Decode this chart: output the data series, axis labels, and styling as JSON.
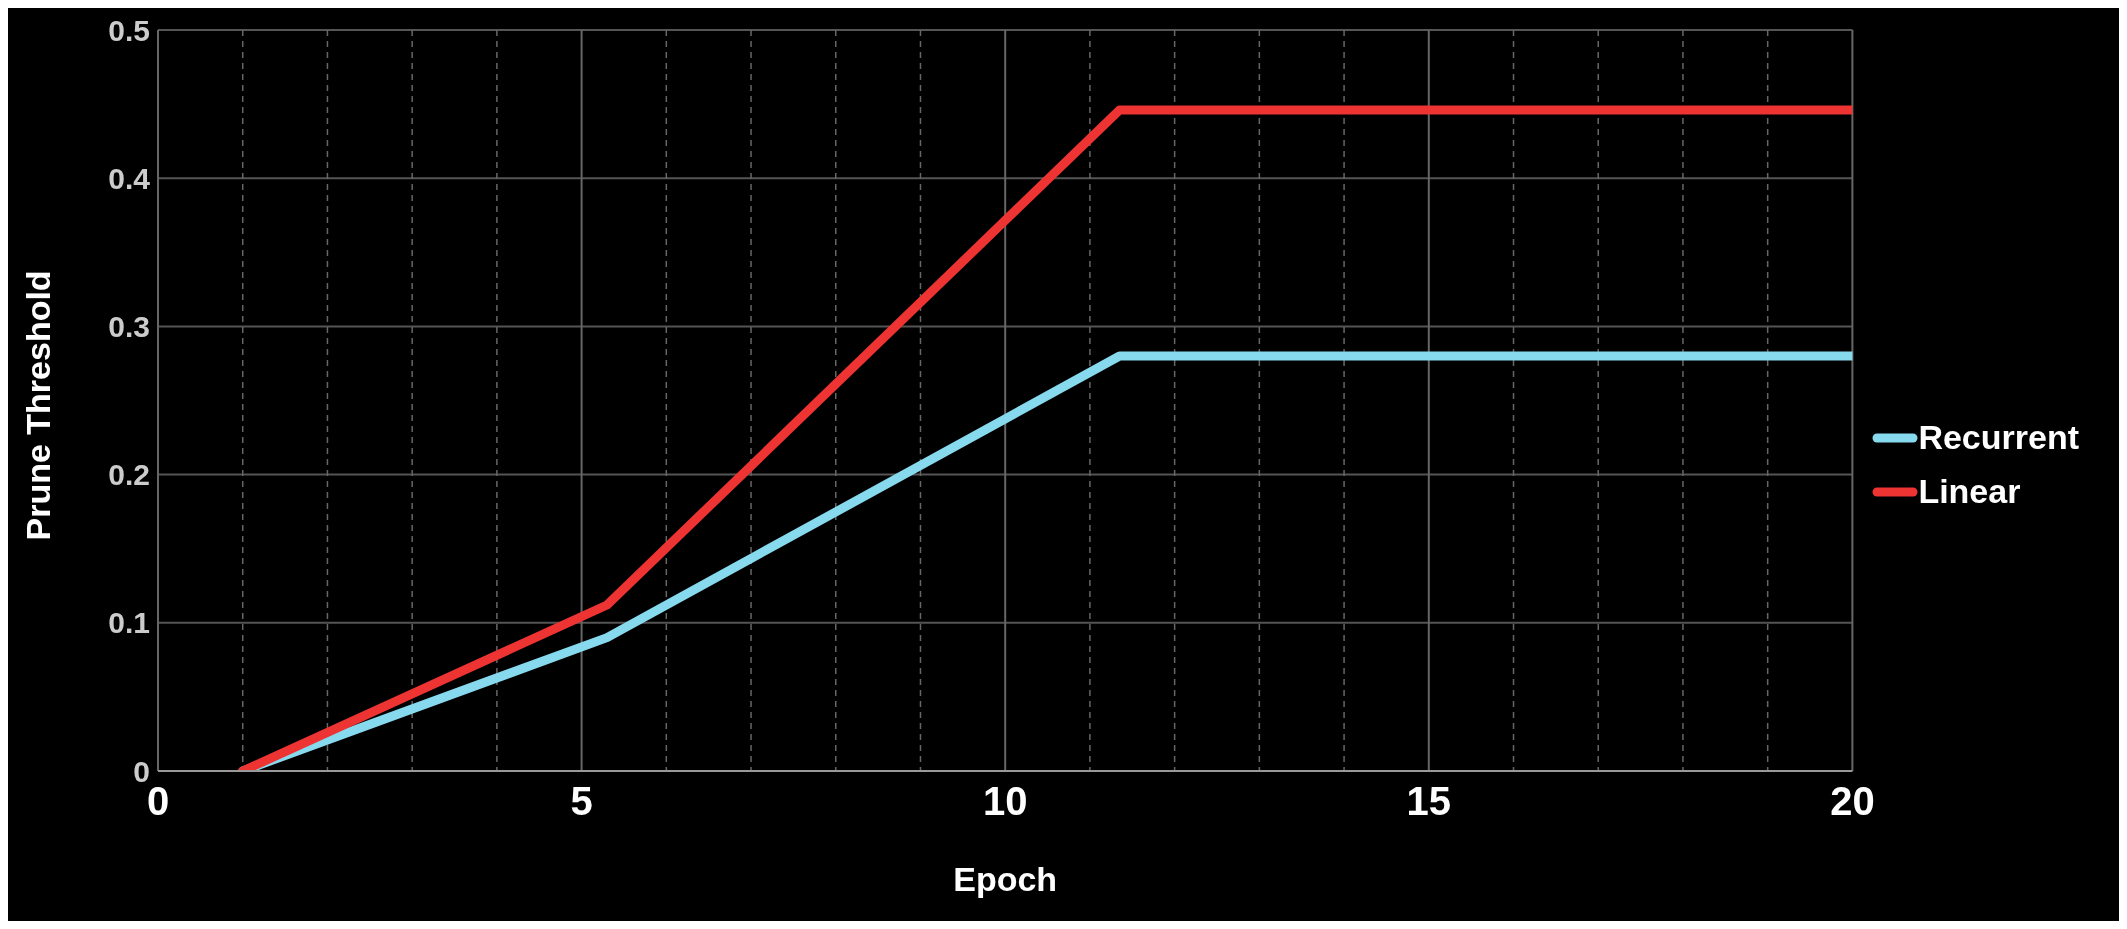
{
  "chart_data": {
    "type": "line",
    "xlabel": "Epoch",
    "ylabel": "Prune Threshold",
    "xlim": [
      0,
      20
    ],
    "xticks": [
      0,
      {
        "value": 1,
        "label": null
      },
      {
        "value": 2,
        "label": null
      },
      {
        "value": 3,
        "label": null
      },
      {
        "value": 4,
        "label": null
      },
      5,
      {
        "value": 6,
        "label": null
      },
      {
        "value": 7,
        "label": null
      },
      {
        "value": 8,
        "label": null
      },
      {
        "value": 9,
        "label": null
      },
      10,
      {
        "value": 11,
        "label": null
      },
      {
        "value": 12,
        "label": null
      },
      {
        "value": 13,
        "label": null
      },
      {
        "value": 14,
        "label": null
      },
      15,
      {
        "value": 16,
        "label": null
      },
      {
        "value": 17,
        "label": null
      },
      {
        "value": 18,
        "label": null
      },
      {
        "value": 19,
        "label": null
      },
      20
    ],
    "ylim": [
      0,
      0.5
    ],
    "yticks": [
      0,
      0.1,
      0.2,
      0.3,
      0.4,
      0.5
    ],
    "grid": true,
    "legend": "right",
    "marker": "none",
    "line_style": "solid",
    "series": [
      {
        "name": "Recurrent",
        "color": "#87d9ee",
        "x": [
          1,
          5.3,
          11.35,
          20
        ],
        "values": [
          0,
          0.09,
          0.28,
          0.28
        ]
      },
      {
        "name": "Linear",
        "color": "#ee3333",
        "x": [
          1,
          5.3,
          11.35,
          20
        ],
        "values": [
          0,
          0.112,
          0.446,
          0.446
        ]
      }
    ]
  }
}
